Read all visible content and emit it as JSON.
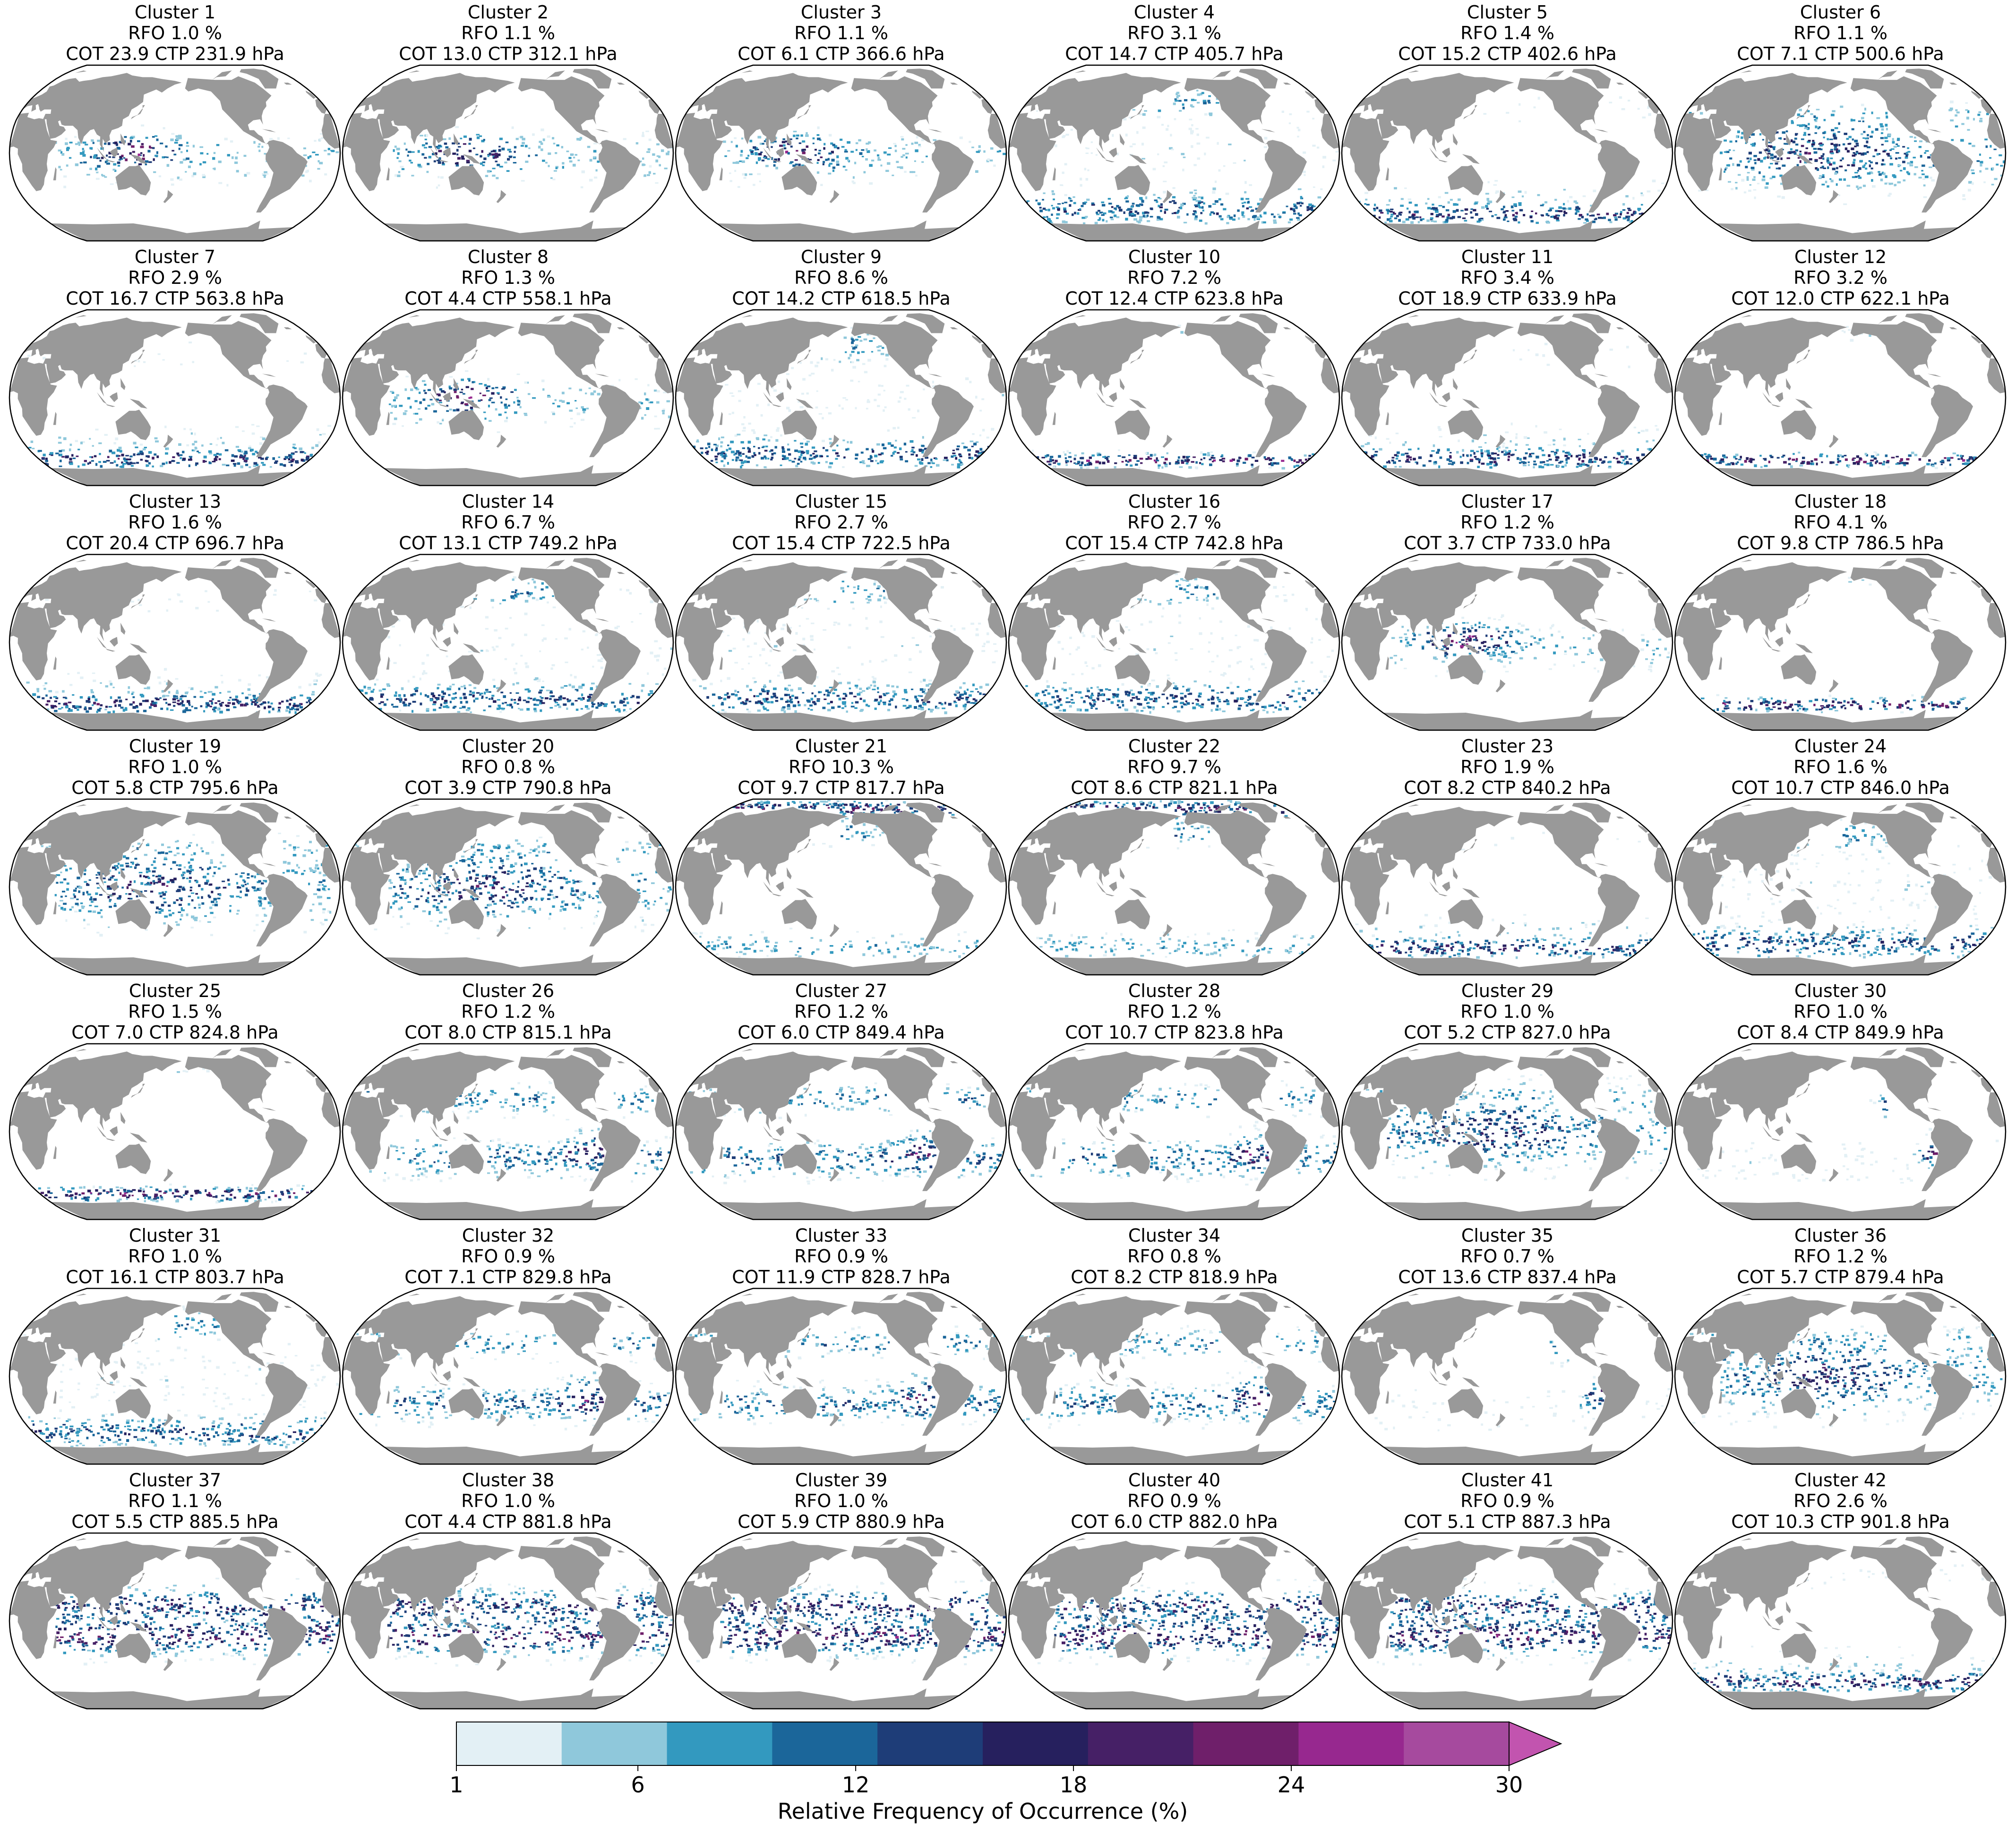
{
  "panels": [
    {
      "cluster": "Cluster 1",
      "rfo": "RFO 1.0 %",
      "props": "COT 23.9  CTP 231.9 hPa",
      "pattern": "tropical-deep"
    },
    {
      "cluster": "Cluster 2",
      "rfo": "RFO 1.1 %",
      "props": "COT 13.0  CTP 312.1 hPa",
      "pattern": "tropical-deep"
    },
    {
      "cluster": "Cluster 3",
      "rfo": "RFO 1.1 %",
      "props": "COT 6.1  CTP 366.6 hPa",
      "pattern": "tropical-deep"
    },
    {
      "cluster": "Cluster 4",
      "rfo": "RFO 3.1 %",
      "props": "COT 14.7  CTP 405.7 hPa",
      "pattern": "midlat-storm"
    },
    {
      "cluster": "Cluster 5",
      "rfo": "RFO 1.4 %",
      "props": "COT 15.2  CTP 402.6 hPa",
      "pattern": "southern-band"
    },
    {
      "cluster": "Cluster 6",
      "rfo": "RFO 1.1 %",
      "props": "COT 7.1  CTP 500.6 hPa",
      "pattern": "tropical-broad"
    },
    {
      "cluster": "Cluster 7",
      "rfo": "RFO 2.9 %",
      "props": "COT 16.7  CTP 563.8 hPa",
      "pattern": "southern-band"
    },
    {
      "cluster": "Cluster 8",
      "rfo": "RFO 1.3 %",
      "props": "COT 4.4  CTP 558.1 hPa",
      "pattern": "tropical-deep"
    },
    {
      "cluster": "Cluster 9",
      "rfo": "RFO 8.6 %",
      "props": "COT 14.2  CTP 618.5 hPa",
      "pattern": "midlat-storm"
    },
    {
      "cluster": "Cluster 10",
      "rfo": "RFO 7.2 %",
      "props": "COT 12.4  CTP 623.8 hPa",
      "pattern": "southern-band-strong"
    },
    {
      "cluster": "Cluster 11",
      "rfo": "RFO 3.4 %",
      "props": "COT 18.9  CTP 633.9 hPa",
      "pattern": "southern-band"
    },
    {
      "cluster": "Cluster 12",
      "rfo": "RFO 3.2 %",
      "props": "COT 12.0  CTP 622.1 hPa",
      "pattern": "southern-band-strong"
    },
    {
      "cluster": "Cluster 13",
      "rfo": "RFO 1.6 %",
      "props": "COT 20.4  CTP 696.7 hPa",
      "pattern": "southern-band"
    },
    {
      "cluster": "Cluster 14",
      "rfo": "RFO 6.7 %",
      "props": "COT 13.1  CTP 749.2 hPa",
      "pattern": "midlat-storm"
    },
    {
      "cluster": "Cluster 15",
      "rfo": "RFO 2.7 %",
      "props": "COT 15.4  CTP 722.5 hPa",
      "pattern": "midlat-storm"
    },
    {
      "cluster": "Cluster 16",
      "rfo": "RFO 2.7 %",
      "props": "COT 15.4  CTP 742.8 hPa",
      "pattern": "midlat-storm"
    },
    {
      "cluster": "Cluster 17",
      "rfo": "RFO 1.2 %",
      "props": "COT 3.7  CTP 733.0 hPa",
      "pattern": "tropical-deep"
    },
    {
      "cluster": "Cluster 18",
      "rfo": "RFO 4.1 %",
      "props": "COT 9.8  CTP 786.5 hPa",
      "pattern": "southern-band-strong"
    },
    {
      "cluster": "Cluster 19",
      "rfo": "RFO 1.0 %",
      "props": "COT 5.8  CTP 795.6 hPa",
      "pattern": "tropical-broad"
    },
    {
      "cluster": "Cluster 20",
      "rfo": "RFO 0.8 %",
      "props": "COT 3.9  CTP 790.8 hPa",
      "pattern": "tropical-broad"
    },
    {
      "cluster": "Cluster 21",
      "rfo": "RFO 10.3 %",
      "props": "COT 9.7  CTP 817.7 hPa",
      "pattern": "arctic"
    },
    {
      "cluster": "Cluster 22",
      "rfo": "RFO 9.7 %",
      "props": "COT 8.6  CTP 821.1 hPa",
      "pattern": "arctic"
    },
    {
      "cluster": "Cluster 23",
      "rfo": "RFO 1.9 %",
      "props": "COT 8.2  CTP 840.2 hPa",
      "pattern": "southern-band"
    },
    {
      "cluster": "Cluster 24",
      "rfo": "RFO 1.6 %",
      "props": "COT 10.7  CTP 846.0 hPa",
      "pattern": "midlat-storm"
    },
    {
      "cluster": "Cluster 25",
      "rfo": "RFO 1.5 %",
      "props": "COT 7.0  CTP 824.8 hPa",
      "pattern": "southern-band-strong"
    },
    {
      "cluster": "Cluster 26",
      "rfo": "RFO 1.2 %",
      "props": "COT 8.0  CTP 815.1 hPa",
      "pattern": "subtropical"
    },
    {
      "cluster": "Cluster 27",
      "rfo": "RFO 1.2 %",
      "props": "COT 6.0  CTP 849.4 hPa",
      "pattern": "subtropical"
    },
    {
      "cluster": "Cluster 28",
      "rfo": "RFO 1.2 %",
      "props": "COT 10.7  CTP 823.8 hPa",
      "pattern": "subtropical"
    },
    {
      "cluster": "Cluster 29",
      "rfo": "RFO 1.0 %",
      "props": "COT 5.2  CTP 827.0 hPa",
      "pattern": "tropical-broad"
    },
    {
      "cluster": "Cluster 30",
      "rfo": "RFO 1.0 %",
      "props": "COT 8.4  CTP 849.9 hPa",
      "pattern": "stratocumulus"
    },
    {
      "cluster": "Cluster 31",
      "rfo": "RFO 1.0 %",
      "props": "COT 16.1  CTP 803.7 hPa",
      "pattern": "midlat-storm"
    },
    {
      "cluster": "Cluster 32",
      "rfo": "RFO 0.9 %",
      "props": "COT 7.1  CTP 829.8 hPa",
      "pattern": "subtropical"
    },
    {
      "cluster": "Cluster 33",
      "rfo": "RFO 0.9 %",
      "props": "COT 11.9  CTP 828.7 hPa",
      "pattern": "subtropical"
    },
    {
      "cluster": "Cluster 34",
      "rfo": "RFO 0.8 %",
      "props": "COT 8.2  CTP 818.9 hPa",
      "pattern": "subtropical"
    },
    {
      "cluster": "Cluster 35",
      "rfo": "RFO 0.7 %",
      "props": "COT 13.6  CTP 837.4 hPa",
      "pattern": "stratocumulus"
    },
    {
      "cluster": "Cluster 36",
      "rfo": "RFO 1.2 %",
      "props": "COT 5.7  CTP 879.4 hPa",
      "pattern": "tropical-broad"
    },
    {
      "cluster": "Cluster 37",
      "rfo": "RFO 1.1 %",
      "props": "COT 5.5  CTP 885.5 hPa",
      "pattern": "tradewind"
    },
    {
      "cluster": "Cluster 38",
      "rfo": "RFO 1.0 %",
      "props": "COT 4.4  CTP 881.8 hPa",
      "pattern": "tradewind"
    },
    {
      "cluster": "Cluster 39",
      "rfo": "RFO 1.0 %",
      "props": "COT 5.9  CTP 880.9 hPa",
      "pattern": "tradewind"
    },
    {
      "cluster": "Cluster 40",
      "rfo": "RFO 0.9 %",
      "props": "COT 6.0  CTP 882.0 hPa",
      "pattern": "tradewind"
    },
    {
      "cluster": "Cluster 41",
      "rfo": "RFO 0.9 %",
      "props": "COT 5.1  CTP 887.3 hPa",
      "pattern": "tradewind"
    },
    {
      "cluster": "Cluster 42",
      "rfo": "RFO 2.6 %",
      "props": "COT 10.3  CTP 901.8 hPa",
      "pattern": "southern-band"
    }
  ],
  "map_style": {
    "projection": "Robinson",
    "central_longitude": 180,
    "land_color": "#999999",
    "ocean_color": "#ffffff",
    "outline_color": "#000000"
  },
  "colorbar": {
    "label": "Relative Frequency of Occurrence (%)",
    "min": 1,
    "max": 30,
    "extend": "max",
    "ticks": [
      "1",
      "6",
      "12",
      "18",
      "24",
      "30"
    ],
    "tick_values": [
      1,
      6,
      12,
      18,
      24,
      30
    ],
    "colors": [
      "#e3f0f5",
      "#8fc8db",
      "#3399bf",
      "#1b669a",
      "#1e3d78",
      "#26205e",
      "#462066",
      "#6f1f6a",
      "#97288f",
      "#a64a9e",
      "#c254af"
    ]
  }
}
